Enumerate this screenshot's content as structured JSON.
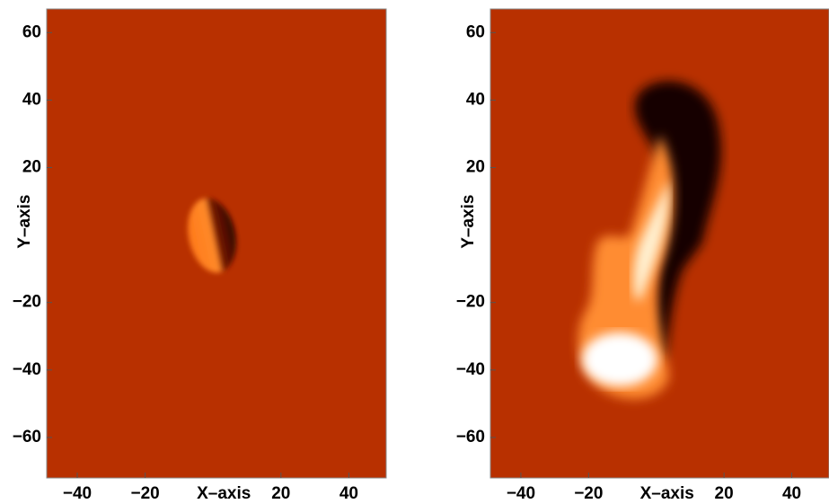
{
  "chart_data": [
    {
      "type": "image",
      "xlabel": "X–axis",
      "ylabel": "Y–axis",
      "background": "#b83000",
      "xlim": [
        -49,
        51
      ],
      "ylim": [
        -72,
        67
      ],
      "xticks": [
        {
          "value": -40,
          "label": "−40"
        },
        {
          "value": -20,
          "label": "−20"
        },
        20,
        40
      ],
      "yticks": [
        60,
        40,
        20,
        {
          "value": -20,
          "label": "−20"
        },
        {
          "value": -40,
          "label": "−40"
        },
        {
          "value": -60,
          "label": "−60"
        }
      ]
    },
    {
      "type": "image",
      "xlabel": "X–axis",
      "ylabel": "Y–axis",
      "background": "#b83000",
      "xlim": [
        -49,
        51
      ],
      "ylim": [
        -72,
        67
      ],
      "xticks": [
        {
          "value": -40,
          "label": "−40"
        },
        {
          "value": -20,
          "label": "−20"
        },
        20,
        40
      ],
      "yticks": [
        60,
        40,
        20,
        {
          "value": -20,
          "label": "−20"
        },
        {
          "value": -40,
          "label": "−40"
        },
        {
          "value": -60,
          "label": "−60"
        }
      ]
    }
  ]
}
